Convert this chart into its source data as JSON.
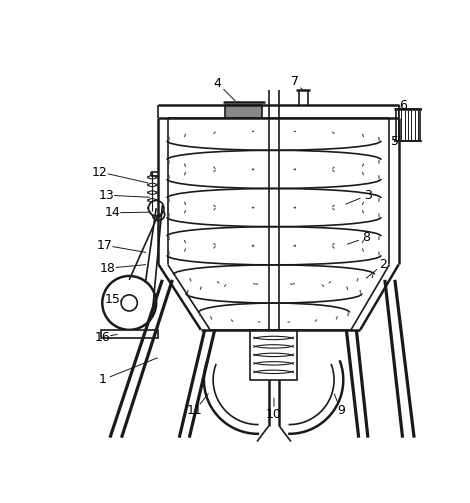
{
  "bg_color": "#ffffff",
  "lc": "#1a1a1a",
  "lw_thick": 1.8,
  "lw_med": 1.2,
  "lw_thin": 0.8,
  "fig_w": 4.7,
  "fig_h": 5.03,
  "dpi": 100
}
